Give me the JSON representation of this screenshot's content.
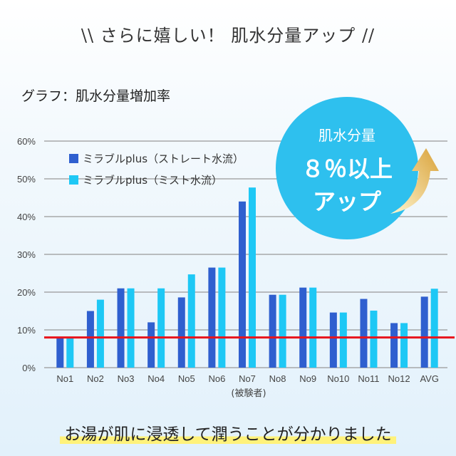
{
  "header": {
    "title": "さらに嬉しい！ 肌水分量アップ"
  },
  "subtitle": "グラフ：肌水分量増加率",
  "badge": {
    "line1": "肌水分量",
    "line2": "８％以上",
    "line3": "アップ"
  },
  "footer": "お湯が肌に浸透して潤うことが分かりました",
  "chart_data": {
    "type": "bar",
    "categories": [
      "No1",
      "No2",
      "No3",
      "No4",
      "No5",
      "No6",
      "No7",
      "No8",
      "No9",
      "No10",
      "No11",
      "No12",
      "AVG"
    ],
    "series": [
      {
        "name": "ミラブルplus（ストレート水流）",
        "color": "#2f5fcf",
        "values": [
          8,
          15,
          21,
          12,
          18.6,
          26.5,
          44,
          19.3,
          21.2,
          14.6,
          18.2,
          11.8,
          18.8
        ]
      },
      {
        "name": "ミラブルplus（ミスト水流）",
        "color": "#1ec8f5",
        "values": [
          8,
          18,
          21,
          21,
          24.7,
          26.5,
          47.7,
          19.3,
          21.2,
          14.6,
          15.1,
          11.8,
          20.9
        ]
      }
    ],
    "reference_line": {
      "value": 8,
      "color": "#e8141c"
    },
    "yticks": [
      "0%",
      "10%",
      "20%",
      "30%",
      "40%",
      "50%",
      "60%"
    ],
    "ylim": [
      0,
      60
    ],
    "xlabel": "(被験者)",
    "ylabel": "",
    "grid": true,
    "legend": "top-left"
  }
}
